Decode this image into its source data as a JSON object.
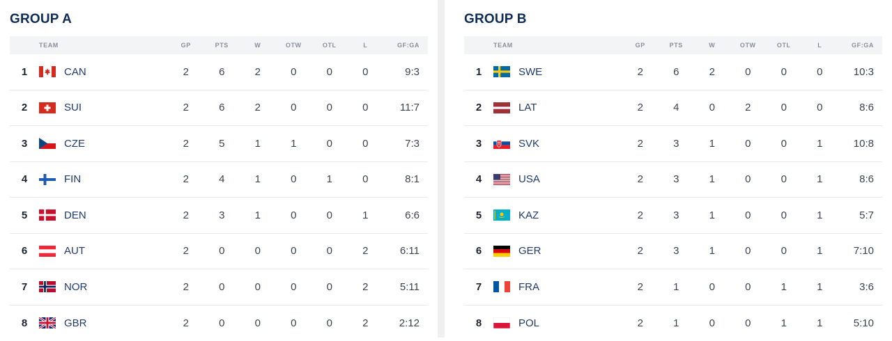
{
  "columns": {
    "team": "TEAM",
    "gp": "GP",
    "pts": "PTS",
    "w": "W",
    "otw": "OTW",
    "otl": "OTL",
    "l": "L",
    "gfga": "GF:GA"
  },
  "groups": [
    {
      "title": "GROUP A",
      "rows": [
        {
          "rank": "1",
          "team": "CAN",
          "flag": "canada-flag-icon",
          "gp": "2",
          "pts": "6",
          "w": "2",
          "otw": "0",
          "otl": "0",
          "l": "0",
          "gfga": "9:3"
        },
        {
          "rank": "2",
          "team": "SUI",
          "flag": "switzerland-flag-icon",
          "gp": "2",
          "pts": "6",
          "w": "2",
          "otw": "0",
          "otl": "0",
          "l": "0",
          "gfga": "11:7"
        },
        {
          "rank": "3",
          "team": "CZE",
          "flag": "czechia-flag-icon",
          "gp": "2",
          "pts": "5",
          "w": "1",
          "otw": "1",
          "otl": "0",
          "l": "0",
          "gfga": "7:3"
        },
        {
          "rank": "4",
          "team": "FIN",
          "flag": "finland-flag-icon",
          "gp": "2",
          "pts": "4",
          "w": "1",
          "otw": "0",
          "otl": "1",
          "l": "0",
          "gfga": "8:1"
        },
        {
          "rank": "5",
          "team": "DEN",
          "flag": "denmark-flag-icon",
          "gp": "2",
          "pts": "3",
          "w": "1",
          "otw": "0",
          "otl": "0",
          "l": "1",
          "gfga": "6:6"
        },
        {
          "rank": "6",
          "team": "AUT",
          "flag": "austria-flag-icon",
          "gp": "2",
          "pts": "0",
          "w": "0",
          "otw": "0",
          "otl": "0",
          "l": "2",
          "gfga": "6:11"
        },
        {
          "rank": "7",
          "team": "NOR",
          "flag": "norway-flag-icon",
          "gp": "2",
          "pts": "0",
          "w": "0",
          "otw": "0",
          "otl": "0",
          "l": "2",
          "gfga": "5:11"
        },
        {
          "rank": "8",
          "team": "GBR",
          "flag": "great-britain-flag-icon",
          "gp": "2",
          "pts": "0",
          "w": "0",
          "otw": "0",
          "otl": "0",
          "l": "2",
          "gfga": "2:12"
        }
      ]
    },
    {
      "title": "GROUP B",
      "rows": [
        {
          "rank": "1",
          "team": "SWE",
          "flag": "sweden-flag-icon",
          "gp": "2",
          "pts": "6",
          "w": "2",
          "otw": "0",
          "otl": "0",
          "l": "0",
          "gfga": "10:3"
        },
        {
          "rank": "2",
          "team": "LAT",
          "flag": "latvia-flag-icon",
          "gp": "2",
          "pts": "4",
          "w": "0",
          "otw": "2",
          "otl": "0",
          "l": "0",
          "gfga": "8:6"
        },
        {
          "rank": "3",
          "team": "SVK",
          "flag": "slovakia-flag-icon",
          "gp": "2",
          "pts": "3",
          "w": "1",
          "otw": "0",
          "otl": "0",
          "l": "1",
          "gfga": "10:8"
        },
        {
          "rank": "4",
          "team": "USA",
          "flag": "usa-flag-icon",
          "gp": "2",
          "pts": "3",
          "w": "1",
          "otw": "0",
          "otl": "0",
          "l": "1",
          "gfga": "8:6"
        },
        {
          "rank": "5",
          "team": "KAZ",
          "flag": "kazakhstan-flag-icon",
          "gp": "2",
          "pts": "3",
          "w": "1",
          "otw": "0",
          "otl": "0",
          "l": "1",
          "gfga": "5:7"
        },
        {
          "rank": "6",
          "team": "GER",
          "flag": "germany-flag-icon",
          "gp": "2",
          "pts": "3",
          "w": "1",
          "otw": "0",
          "otl": "0",
          "l": "1",
          "gfga": "7:10"
        },
        {
          "rank": "7",
          "team": "FRA",
          "flag": "france-flag-icon",
          "gp": "2",
          "pts": "1",
          "w": "0",
          "otw": "0",
          "otl": "1",
          "l": "1",
          "gfga": "3:6"
        },
        {
          "rank": "8",
          "team": "POL",
          "flag": "poland-flag-icon",
          "gp": "2",
          "pts": "1",
          "w": "0",
          "otw": "0",
          "otl": "1",
          "l": "1",
          "gfga": "5:10"
        }
      ]
    }
  ],
  "colors": {
    "title": "#0d2d58",
    "team_link": "#1f3a6e",
    "header_bg": "#f3f4f6",
    "gutter": "#f0f0f0"
  }
}
